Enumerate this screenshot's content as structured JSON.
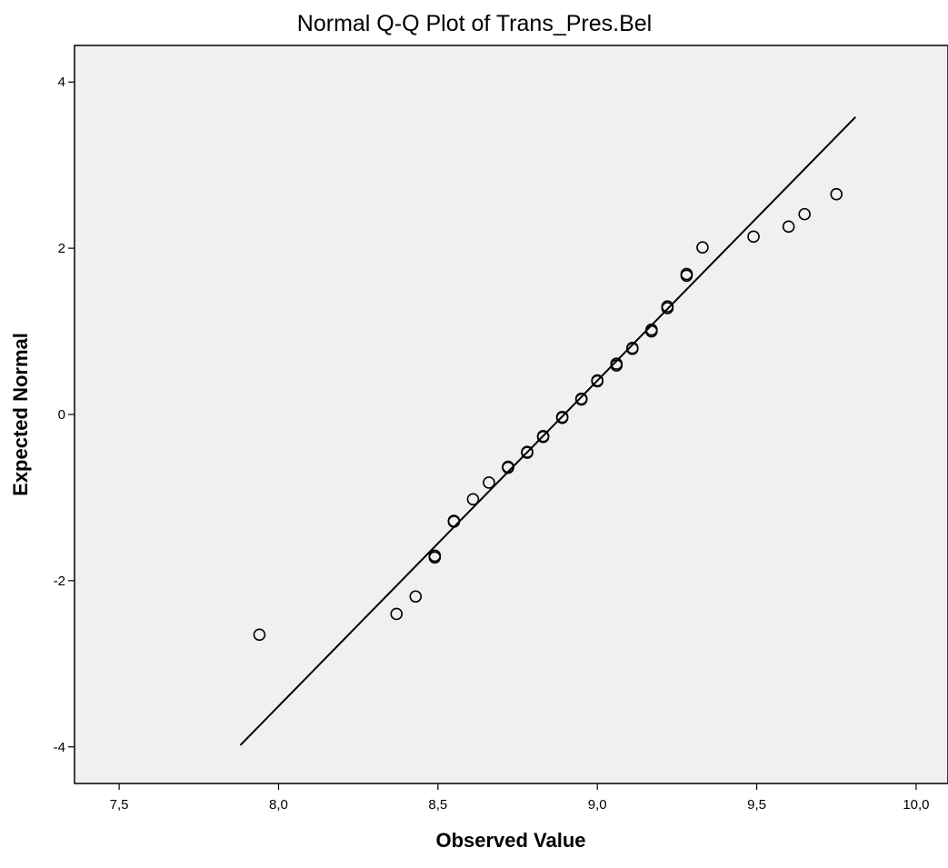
{
  "chart_data": {
    "type": "scatter",
    "title": "Normal Q-Q Plot of Trans_Pres.Bel",
    "xlabel": "Observed Value",
    "ylabel": "Expected Normal",
    "xlim": [
      7.36,
      10.1
    ],
    "ylim": [
      -4.44,
      4.44
    ],
    "x_ticks": [
      7.5,
      8.0,
      8.5,
      9.0,
      9.5,
      10.0
    ],
    "x_tick_labels": [
      "7,5",
      "8,0",
      "8,5",
      "9,0",
      "9,5",
      "10,0"
    ],
    "y_ticks": [
      4,
      2,
      0,
      -2,
      -4
    ],
    "y_tick_labels": [
      "4",
      "2",
      "0",
      "-2",
      "-4"
    ],
    "grid": false,
    "plot_background": "#f0f0f0",
    "marker": "open-circle",
    "reference_line": {
      "x": [
        7.88,
        9.81
      ],
      "y": [
        -3.98,
        3.58
      ]
    },
    "points": [
      {
        "x": 7.94,
        "y": -2.65
      },
      {
        "x": 8.37,
        "y": -2.4
      },
      {
        "x": 8.43,
        "y": -2.19
      },
      {
        "x": 8.49,
        "y": -1.7
      },
      {
        "x": 8.49,
        "y": -1.72
      },
      {
        "x": 8.55,
        "y": -1.28
      },
      {
        "x": 8.55,
        "y": -1.29
      },
      {
        "x": 8.61,
        "y": -1.02
      },
      {
        "x": 8.66,
        "y": -0.82
      },
      {
        "x": 8.72,
        "y": -0.63
      },
      {
        "x": 8.72,
        "y": -0.64
      },
      {
        "x": 8.78,
        "y": -0.45
      },
      {
        "x": 8.78,
        "y": -0.46
      },
      {
        "x": 8.83,
        "y": -0.26
      },
      {
        "x": 8.83,
        "y": -0.27
      },
      {
        "x": 8.89,
        "y": -0.03
      },
      {
        "x": 8.89,
        "y": -0.04
      },
      {
        "x": 8.95,
        "y": 0.18
      },
      {
        "x": 8.95,
        "y": 0.19
      },
      {
        "x": 9.0,
        "y": 0.4
      },
      {
        "x": 9.0,
        "y": 0.41
      },
      {
        "x": 9.06,
        "y": 0.59
      },
      {
        "x": 9.06,
        "y": 0.61
      },
      {
        "x": 9.11,
        "y": 0.79
      },
      {
        "x": 9.11,
        "y": 0.8
      },
      {
        "x": 9.17,
        "y": 1.0
      },
      {
        "x": 9.17,
        "y": 1.02
      },
      {
        "x": 9.22,
        "y": 1.28
      },
      {
        "x": 9.22,
        "y": 1.3
      },
      {
        "x": 9.28,
        "y": 1.67
      },
      {
        "x": 9.28,
        "y": 1.69
      },
      {
        "x": 9.33,
        "y": 2.01
      },
      {
        "x": 9.49,
        "y": 2.14
      },
      {
        "x": 9.6,
        "y": 2.26
      },
      {
        "x": 9.65,
        "y": 2.41
      },
      {
        "x": 9.75,
        "y": 2.65
      }
    ]
  }
}
